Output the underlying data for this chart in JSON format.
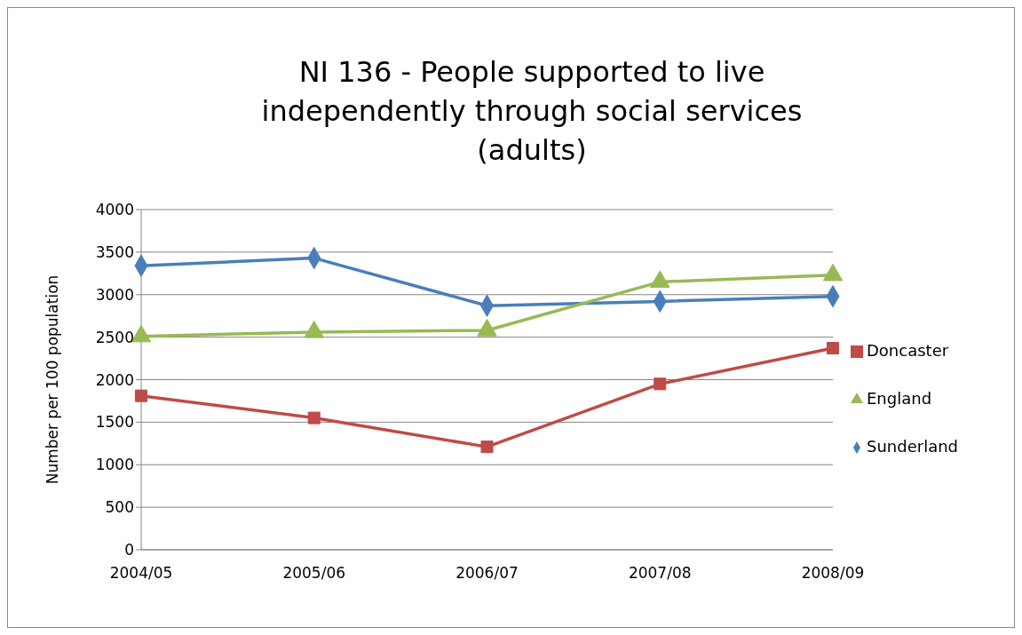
{
  "chart_data": {
    "type": "line",
    "title": "NI 136 - People supported to live independently through social services (adults)",
    "ylabel": "Number per 100 population",
    "categories": [
      "2004/05",
      "2005/06",
      "2006/07",
      "2007/08",
      "2008/09"
    ],
    "series": [
      {
        "name": "Sunderland",
        "color": "#4a7ebb",
        "marker": "diamond",
        "values": [
          3340,
          3430,
          2870,
          2920,
          2980
        ]
      },
      {
        "name": "Doncaster",
        "color": "#be4b48",
        "marker": "square",
        "values": [
          1810,
          1550,
          1210,
          1950,
          2370
        ]
      },
      {
        "name": "England",
        "color": "#98b954",
        "marker": "triangle",
        "values": [
          2510,
          2560,
          2580,
          3150,
          3230
        ]
      }
    ],
    "ylim": [
      0,
      4000
    ],
    "yticks": [
      0,
      500,
      1000,
      1500,
      2000,
      2500,
      3000,
      3500,
      4000
    ],
    "grid": "y",
    "legend": "right",
    "line_style": "solid"
  }
}
